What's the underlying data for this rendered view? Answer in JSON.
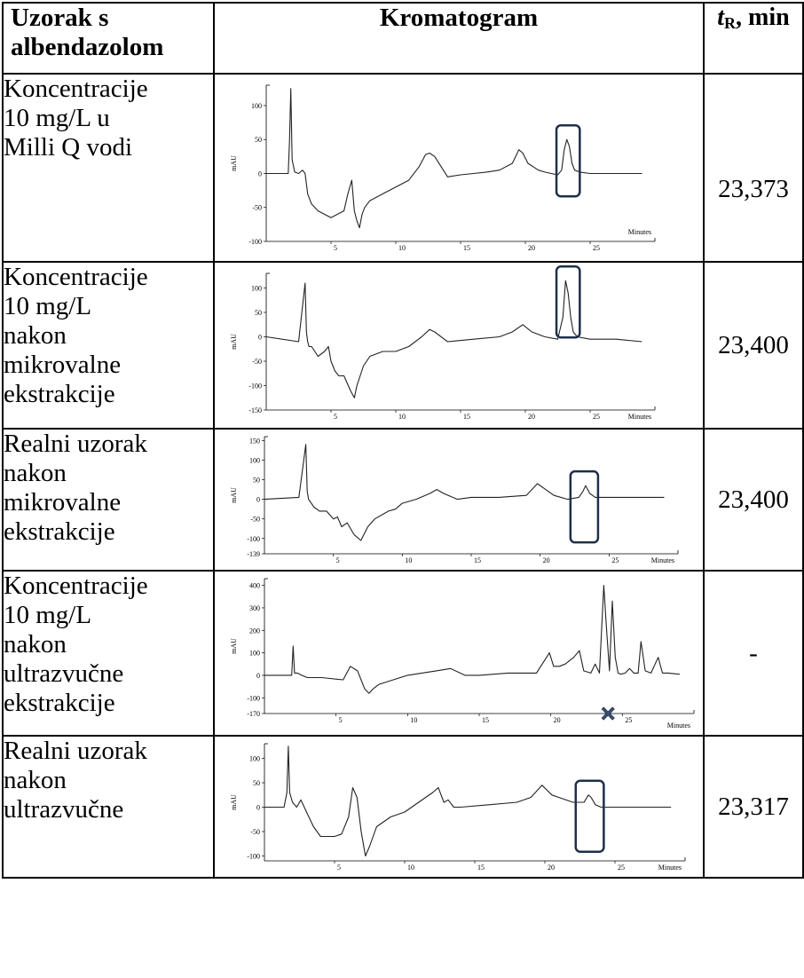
{
  "table": {
    "headers": {
      "sample": "Uzorak s albendazolom",
      "sample_line1": "Uzorak s",
      "sample_line2": "albendazolom",
      "chromatogram": "Kromatogram",
      "tr_italic": "t",
      "tr_sub": "R",
      "tr_rest": ", min"
    },
    "rows": [
      {
        "sample_lines": [
          "Koncentracije",
          "10 mg/L u",
          "Milli Q vodi"
        ],
        "tr": "23,373"
      },
      {
        "sample_lines": [
          "Koncentracije",
          "10 mg/L",
          "nakon",
          "mikrovalne",
          "ekstrakcije"
        ],
        "tr": "23,400"
      },
      {
        "sample_lines": [
          "Realni uzorak",
          "nakon",
          "mikrovalne",
          "ekstrakcije"
        ],
        "tr": "23,400"
      },
      {
        "sample_lines": [
          "Koncentracije",
          "10 mg/L",
          "nakon",
          "ultrazvučne",
          "ekstrakcije"
        ],
        "tr": "-"
      },
      {
        "sample_lines": [
          "Realni uzorak",
          "nakon",
          "ultrazvučne"
        ],
        "tr": "23,317"
      }
    ]
  },
  "chart_data": [
    {
      "type": "line",
      "ylabel": "mAU",
      "xlabel": "Minutes",
      "xlim": [
        0,
        30
      ],
      "ylim": [
        -100,
        130
      ],
      "yticks": [
        100,
        50,
        0,
        -50,
        -100
      ],
      "ytick_labels": [
        "100",
        "50",
        "0",
        "-50",
        "-100"
      ],
      "xticks": [
        5,
        10,
        15,
        20,
        25
      ],
      "xtick_labels": [
        "5",
        "10",
        "15",
        "20",
        "25"
      ],
      "x": [
        0,
        1.7,
        1.8,
        1.9,
        2.0,
        2.2,
        2.5,
        2.8,
        3.0,
        3.2,
        3.5,
        4.0,
        5.0,
        6.0,
        6.3,
        6.6,
        6.8,
        7.0,
        7.2,
        7.4,
        7.6,
        8.0,
        9.0,
        10.0,
        11.0,
        11.8,
        12.3,
        12.6,
        13.0,
        14.0,
        15.0,
        16.0,
        17.0,
        18.0,
        19.0,
        19.5,
        19.8,
        20.2,
        20.6,
        21.0,
        21.5,
        22.0,
        22.5,
        22.8,
        23.0,
        23.2,
        23.4,
        23.6,
        23.8,
        24.2,
        25.0,
        26.0,
        27.0,
        28.0,
        29.0
      ],
      "y": [
        0,
        0,
        50,
        125,
        20,
        2,
        0,
        5,
        0,
        -30,
        -45,
        -55,
        -65,
        -55,
        -30,
        -10,
        -55,
        -70,
        -80,
        -60,
        -50,
        -40,
        -30,
        -20,
        -10,
        10,
        28,
        30,
        25,
        -5,
        -2,
        0,
        2,
        5,
        15,
        35,
        30,
        15,
        10,
        5,
        2,
        0,
        -2,
        5,
        35,
        50,
        40,
        15,
        5,
        2,
        0,
        0,
        0,
        0,
        0
      ],
      "annotation": "highlighted peak ≈ 23.4 min"
    },
    {
      "type": "line",
      "ylabel": "mAU",
      "xlabel": "Minutes",
      "xlim": [
        0,
        30
      ],
      "ylim": [
        -150,
        130
      ],
      "yticks": [
        100,
        50,
        0,
        -50,
        -100,
        -150
      ],
      "ytick_labels": [
        "100",
        "50",
        "0",
        "-50",
        "-100",
        "-150"
      ],
      "xticks": [
        5,
        10,
        15,
        20,
        25
      ],
      "xtick_labels": [
        "5",
        "10",
        "15",
        "20",
        "25"
      ],
      "x": [
        0,
        2.5,
        3.0,
        3.1,
        3.2,
        3.3,
        3.5,
        4.0,
        4.5,
        4.8,
        5.0,
        5.3,
        5.6,
        6.0,
        6.5,
        6.8,
        7.0,
        7.5,
        8.0,
        9.0,
        10.0,
        11.0,
        12.0,
        12.6,
        13.0,
        14.0,
        16.0,
        18.0,
        19.0,
        19.8,
        20.5,
        21.5,
        22.5,
        22.9,
        23.1,
        23.3,
        23.5,
        23.7,
        24.0,
        25.0,
        27.0,
        29.0
      ],
      "y": [
        0,
        -10,
        110,
        10,
        -10,
        -20,
        -20,
        -40,
        -30,
        -20,
        -50,
        -70,
        -80,
        -80,
        -110,
        -125,
        -100,
        -60,
        -40,
        -30,
        -30,
        -20,
        0,
        15,
        10,
        -10,
        -5,
        0,
        10,
        25,
        10,
        0,
        -5,
        40,
        115,
        90,
        40,
        10,
        0,
        -5,
        -5,
        -10
      ]
    },
    {
      "type": "line",
      "ylabel": "mAU",
      "xlabel": "Minutes",
      "xlim": [
        0,
        30
      ],
      "ylim": [
        -139,
        160
      ],
      "yticks": [
        150,
        100,
        50,
        0,
        -50,
        -100,
        -139
      ],
      "ytick_labels": [
        "150",
        "100",
        "50",
        "0",
        "-50",
        "-100",
        "-139"
      ],
      "xticks": [
        5,
        10,
        15,
        20,
        25
      ],
      "xtick_labels": [
        "5",
        "10",
        "15",
        "20",
        "25"
      ],
      "x": [
        0,
        2.5,
        3.0,
        3.1,
        3.2,
        3.4,
        3.6,
        4.0,
        4.5,
        5.0,
        5.3,
        5.6,
        6.0,
        6.5,
        7.0,
        7.5,
        8.0,
        9.0,
        9.5,
        10.0,
        11.0,
        12.0,
        12.5,
        13.0,
        14.0,
        15.0,
        17.0,
        19.0,
        19.8,
        20.4,
        21.0,
        22.0,
        22.8,
        23.1,
        23.3,
        23.6,
        24.0,
        25.0,
        27.0,
        29.0
      ],
      "y": [
        0,
        5,
        140,
        20,
        0,
        -10,
        -20,
        -30,
        -30,
        -50,
        -45,
        -70,
        -60,
        -90,
        -105,
        -70,
        -50,
        -30,
        -25,
        -10,
        0,
        15,
        25,
        15,
        0,
        5,
        5,
        10,
        40,
        25,
        10,
        0,
        5,
        20,
        35,
        15,
        5,
        5,
        5,
        5
      ]
    },
    {
      "type": "line",
      "ylabel": "mAU",
      "xlabel": "Minutes",
      "xlim": [
        0,
        30
      ],
      "ylim": [
        -170,
        430
      ],
      "yticks": [
        400,
        300,
        200,
        100,
        0,
        -100,
        -170
      ],
      "ytick_labels": [
        "400",
        "300",
        "200",
        "100",
        "0",
        "-100",
        "-170"
      ],
      "xticks": [
        5,
        10,
        15,
        20,
        25
      ],
      "xtick_labels": [
        "5",
        "10",
        "15",
        "20",
        "25"
      ],
      "x": [
        0,
        1.9,
        2.0,
        2.1,
        2.3,
        2.6,
        3.0,
        4.0,
        5.5,
        6.0,
        6.5,
        7.0,
        7.3,
        7.6,
        8.0,
        9.0,
        10.0,
        12.0,
        13.0,
        14.0,
        15.0,
        17.0,
        19.0,
        19.9,
        20.2,
        20.6,
        21.0,
        21.6,
        22.0,
        22.3,
        22.8,
        23.1,
        23.4,
        23.7,
        23.9,
        24.1,
        24.3,
        24.5,
        24.7,
        24.9,
        25.2,
        25.5,
        25.8,
        26.1,
        26.3,
        26.6,
        27.0,
        27.5,
        27.8,
        28.2,
        29.0
      ],
      "y": [
        0,
        0,
        130,
        10,
        10,
        0,
        -10,
        -10,
        -20,
        40,
        20,
        -60,
        -80,
        -60,
        -40,
        -20,
        0,
        20,
        30,
        0,
        0,
        10,
        10,
        100,
        40,
        40,
        50,
        80,
        110,
        20,
        10,
        50,
        10,
        400,
        200,
        20,
        330,
        80,
        10,
        5,
        10,
        30,
        10,
        10,
        150,
        20,
        10,
        80,
        10,
        10,
        5
      ],
      "annotation": "no peak at ≈ 24 min (marked with ✖)"
    },
    {
      "type": "line",
      "ylabel": "mAU",
      "xlabel": "Minutes",
      "xlim": [
        0,
        30
      ],
      "ylim": [
        -110,
        130
      ],
      "yticks": [
        100,
        50,
        0,
        -50,
        -100
      ],
      "ytick_labels": [
        "100",
        "50",
        "0",
        "-50",
        "-100"
      ],
      "xticks": [
        5,
        10,
        15,
        20,
        25
      ],
      "xtick_labels": [
        "5",
        "10",
        "15",
        "20",
        "25"
      ],
      "x": [
        0,
        1.4,
        1.6,
        1.7,
        1.8,
        2.0,
        2.3,
        2.6,
        3.0,
        3.5,
        4.0,
        5.0,
        5.5,
        6.0,
        6.3,
        6.6,
        6.9,
        7.2,
        7.5,
        8.0,
        9.0,
        10.0,
        11.0,
        12.0,
        12.4,
        12.8,
        13.1,
        13.5,
        14.0,
        16.0,
        18.0,
        19.0,
        19.8,
        20.5,
        21.0,
        22.0,
        22.8,
        23.1,
        23.3,
        23.6,
        24.0,
        25.0,
        27.0,
        29.0
      ],
      "y": [
        0,
        0,
        30,
        125,
        30,
        10,
        0,
        15,
        -10,
        -40,
        -60,
        -60,
        -55,
        -20,
        40,
        20,
        -50,
        -100,
        -80,
        -40,
        -20,
        -10,
        10,
        30,
        40,
        10,
        15,
        0,
        0,
        5,
        10,
        20,
        45,
        25,
        20,
        10,
        10,
        25,
        20,
        5,
        0,
        0,
        0,
        0
      ],
      "annotation": "highlighted peak ≈ 23.3 min"
    }
  ],
  "annotations": [
    {
      "chart": 0,
      "type": "box",
      "x_range": [
        22.4,
        24.2
      ]
    },
    {
      "chart": 1,
      "type": "box",
      "x_range": [
        22.4,
        24.2
      ]
    },
    {
      "chart": 2,
      "type": "box",
      "x_range": [
        22.2,
        24.2
      ]
    },
    {
      "chart": 3,
      "type": "cross",
      "x": 24.0
    },
    {
      "chart": 4,
      "type": "box",
      "x_range": [
        22.2,
        24.2
      ]
    }
  ]
}
